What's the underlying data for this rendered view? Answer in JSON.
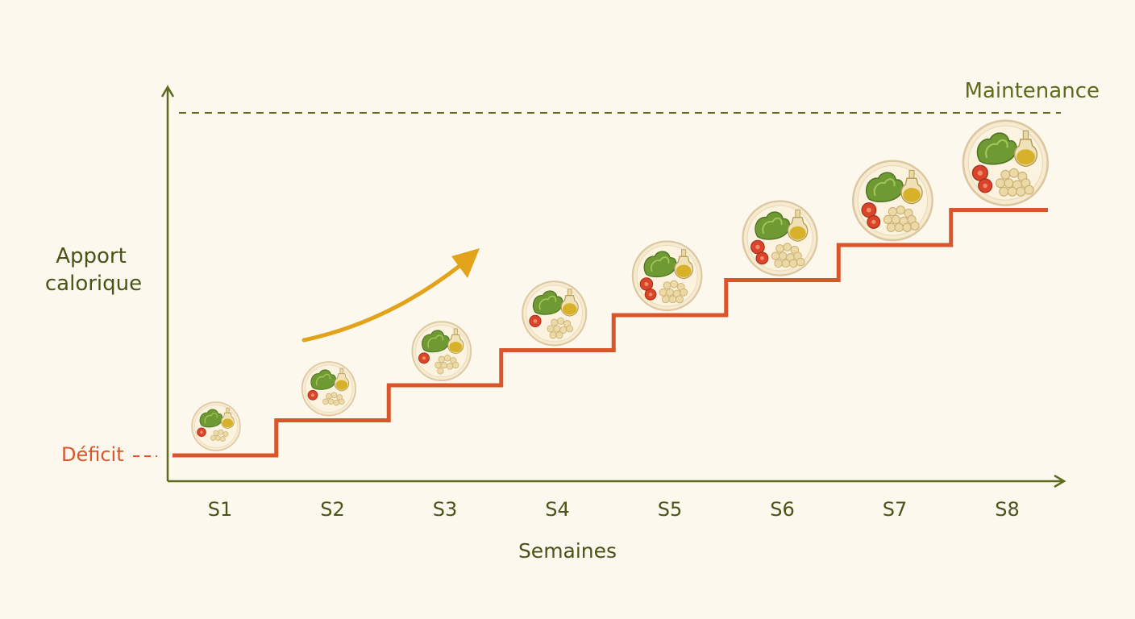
{
  "chart_data": {
    "type": "line",
    "step": true,
    "xlabel": "Semaines",
    "ylabel_lines": [
      "Apport",
      "calorique"
    ],
    "categories": [
      "S1",
      "S2",
      "S3",
      "S4",
      "S5",
      "S6",
      "S7",
      "S8"
    ],
    "values": [
      1,
      2,
      3,
      4,
      5,
      6,
      7,
      8
    ],
    "ylim": [
      0,
      10.5
    ],
    "grid": false,
    "reference_lines": {
      "maintenance": {
        "label": "Maintenance",
        "value": 10.5,
        "color": "#5e6b1e"
      },
      "deficit": {
        "label": "Déficit",
        "value": 1,
        "color": "#d9562a"
      }
    },
    "annotations": [
      {
        "type": "arrow",
        "meaning": "increase",
        "color": "#e2a31a"
      },
      {
        "type": "meal-plate-icon",
        "count": 8,
        "meaning": "portion size grows each week"
      }
    ],
    "colors": {
      "axis": "#5e6b1e",
      "step_line": "#d9562a",
      "text": "#4a5418",
      "arrow": "#e2a31a"
    }
  }
}
